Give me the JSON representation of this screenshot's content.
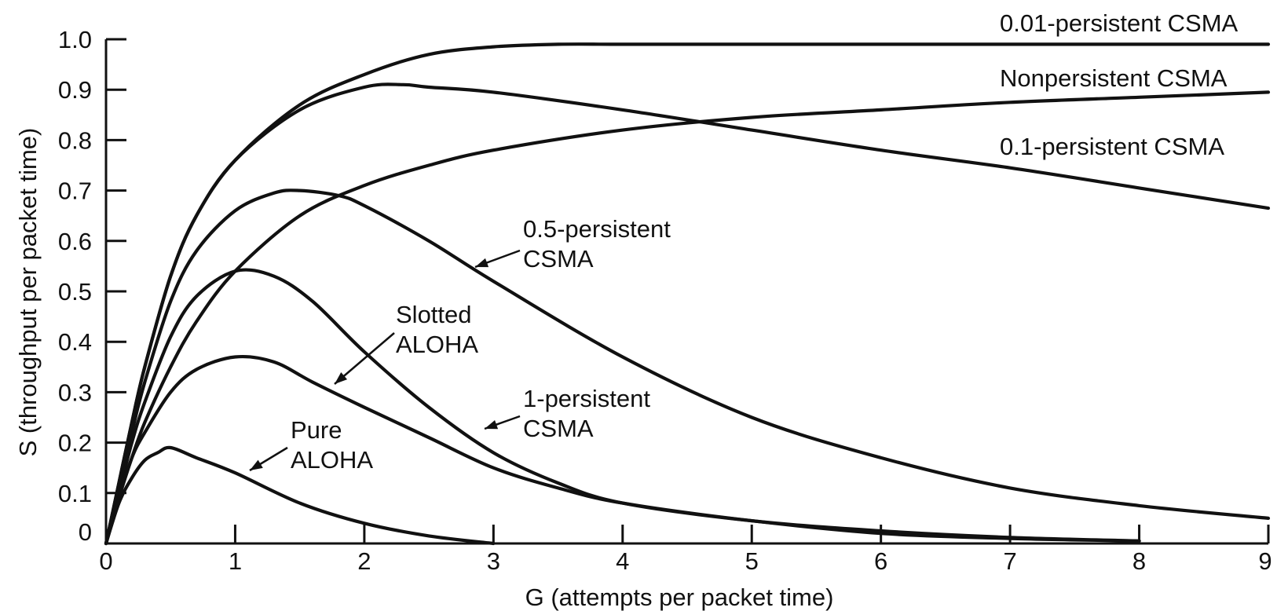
{
  "chart_data": {
    "type": "line",
    "xlabel": "G (attempts per packet time)",
    "ylabel": "S (throughput per packet time)",
    "xlim": [
      0,
      9
    ],
    "ylim": [
      0,
      1.0
    ],
    "x_ticks": [
      "0",
      "1",
      "2",
      "3",
      "4",
      "5",
      "6",
      "7",
      "8",
      "9"
    ],
    "y_ticks": [
      "0",
      "0.1",
      "0.2",
      "0.3",
      "0.4",
      "0.5",
      "0.6",
      "0.7",
      "0.8",
      "0.9",
      "1.0"
    ],
    "grid": false,
    "series": [
      {
        "key": "pure-aloha",
        "label_lines": [
          "Pure",
          "ALOHA"
        ],
        "x": [
          0,
          0.1,
          0.2,
          0.3,
          0.4,
          0.5,
          0.7,
          1.0,
          1.5,
          2.0,
          2.5,
          3.0
        ],
        "y": [
          0,
          0.08,
          0.13,
          0.165,
          0.18,
          0.19,
          0.17,
          0.14,
          0.08,
          0.04,
          0.015,
          0.0
        ]
      },
      {
        "key": "slotted-aloha",
        "label_lines": [
          "Slotted",
          "ALOHA"
        ],
        "x": [
          0,
          0.1,
          0.2,
          0.3,
          0.5,
          0.7,
          1.0,
          1.3,
          1.6,
          2.0,
          2.5,
          3.0,
          3.5,
          4.0,
          5.0,
          6.0,
          7.0,
          8.0
        ],
        "y": [
          0,
          0.09,
          0.17,
          0.22,
          0.3,
          0.345,
          0.37,
          0.36,
          0.32,
          0.27,
          0.21,
          0.15,
          0.11,
          0.08,
          0.045,
          0.02,
          0.01,
          0.005
        ]
      },
      {
        "key": "1-persistent",
        "label_lines": [
          "1-persistent",
          "CSMA"
        ],
        "x": [
          0,
          0.1,
          0.2,
          0.3,
          0.5,
          0.7,
          1.0,
          1.3,
          1.6,
          2.0,
          2.5,
          3.0,
          3.5,
          4.0,
          5.0,
          6.0,
          7.0,
          8.0
        ],
        "y": [
          0,
          0.1,
          0.2,
          0.28,
          0.41,
          0.49,
          0.54,
          0.53,
          0.48,
          0.38,
          0.27,
          0.18,
          0.12,
          0.08,
          0.045,
          0.025,
          0.012,
          0.005
        ]
      },
      {
        "key": "0.5-persistent",
        "label_lines": [
          "0.5-persistent",
          "CSMA"
        ],
        "x": [
          0,
          0.1,
          0.2,
          0.3,
          0.5,
          0.7,
          1.0,
          1.3,
          1.5,
          1.8,
          2.0,
          2.5,
          3.0,
          4.0,
          5.0,
          6.0,
          7.0,
          8.0,
          9.0
        ],
        "y": [
          0,
          0.11,
          0.22,
          0.32,
          0.48,
          0.58,
          0.66,
          0.695,
          0.7,
          0.69,
          0.67,
          0.6,
          0.52,
          0.37,
          0.25,
          0.17,
          0.11,
          0.075,
          0.05
        ]
      },
      {
        "key": "nonpersistent",
        "label_lines": [
          "Nonpersistent CSMA"
        ],
        "x": [
          0,
          0.1,
          0.2,
          0.3,
          0.5,
          0.7,
          1.0,
          1.5,
          2.0,
          2.5,
          3.0,
          4.0,
          5.0,
          6.0,
          7.0,
          8.0,
          9.0
        ],
        "y": [
          0,
          0.09,
          0.17,
          0.24,
          0.35,
          0.44,
          0.54,
          0.65,
          0.71,
          0.75,
          0.78,
          0.82,
          0.845,
          0.86,
          0.875,
          0.885,
          0.895
        ]
      },
      {
        "key": "0.1-persistent",
        "label_lines": [
          "0.1-persistent CSMA"
        ],
        "x": [
          0,
          0.1,
          0.2,
          0.3,
          0.5,
          0.7,
          1.0,
          1.5,
          2.0,
          2.3,
          2.5,
          3.0,
          4.0,
          5.0,
          6.0,
          7.0,
          8.0,
          9.0
        ],
        "y": [
          0,
          0.12,
          0.24,
          0.35,
          0.53,
          0.65,
          0.76,
          0.86,
          0.905,
          0.91,
          0.905,
          0.895,
          0.86,
          0.82,
          0.78,
          0.745,
          0.705,
          0.665
        ]
      },
      {
        "key": "0.01-persistent",
        "label_lines": [
          "0.01-persistent CSMA"
        ],
        "x": [
          0,
          0.1,
          0.2,
          0.3,
          0.5,
          0.7,
          1.0,
          1.5,
          2.0,
          2.5,
          3.0,
          3.5,
          4.0,
          5.0,
          6.0,
          7.0,
          8.0,
          9.0
        ],
        "y": [
          0,
          0.12,
          0.24,
          0.35,
          0.53,
          0.65,
          0.76,
          0.87,
          0.93,
          0.97,
          0.985,
          0.99,
          0.99,
          0.99,
          0.99,
          0.99,
          0.99,
          0.99
        ]
      }
    ]
  }
}
